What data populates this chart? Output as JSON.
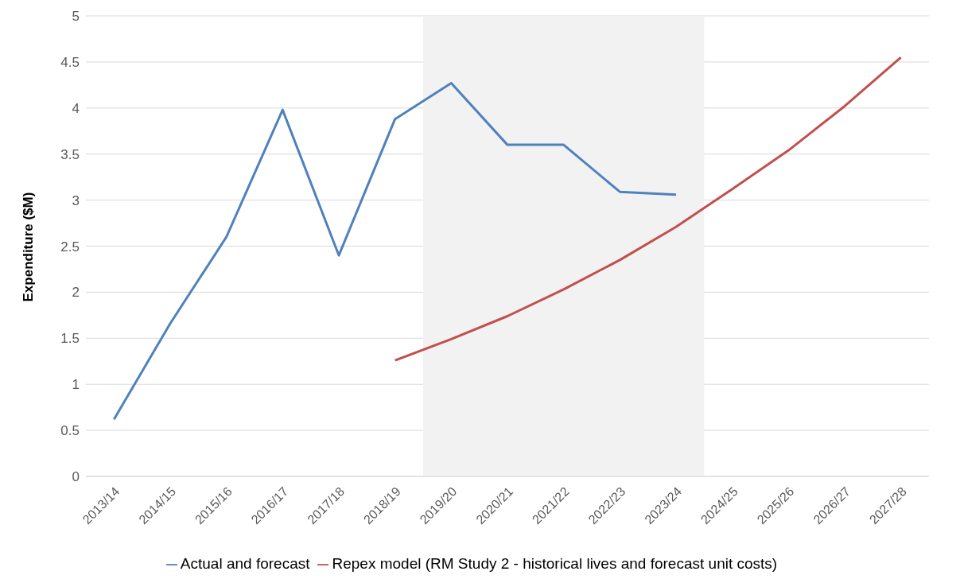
{
  "chart_data": {
    "type": "line",
    "ylabel": "Expenditure ($M)",
    "categories": [
      "2013/14",
      "2014/15",
      "2015/16",
      "2016/17",
      "2017/18",
      "2018/19",
      "2019/20",
      "2020/21",
      "2021/22",
      "2022/23",
      "2023/24",
      "2024/25",
      "2025/26",
      "2026/27",
      "2027/28"
    ],
    "series": [
      {
        "name": "Actual and forecast",
        "color": "#4f81bd",
        "values": [
          0.62,
          1.66,
          2.6,
          3.98,
          2.4,
          3.88,
          4.27,
          3.6,
          3.6,
          3.09,
          3.06,
          null,
          null,
          null,
          null
        ]
      },
      {
        "name": "Repex model (RM Study 2 - historical lives and forecast unit costs)",
        "color": "#c0504d",
        "values": [
          null,
          null,
          null,
          null,
          null,
          1.26,
          1.49,
          1.74,
          2.03,
          2.35,
          2.71,
          3.12,
          3.54,
          4.02,
          4.55
        ]
      }
    ],
    "ylim": [
      0,
      5
    ],
    "yticks": [
      0,
      0.5,
      1,
      1.5,
      2,
      2.5,
      3,
      3.5,
      4,
      4.5,
      5
    ],
    "bands": [
      {
        "axis": "x",
        "from": "2019/20",
        "to": "2023/24",
        "color": "#f2f2f2"
      }
    ],
    "grid": "y",
    "legend": "bottom",
    "marker": "none",
    "line_style": "solid"
  }
}
